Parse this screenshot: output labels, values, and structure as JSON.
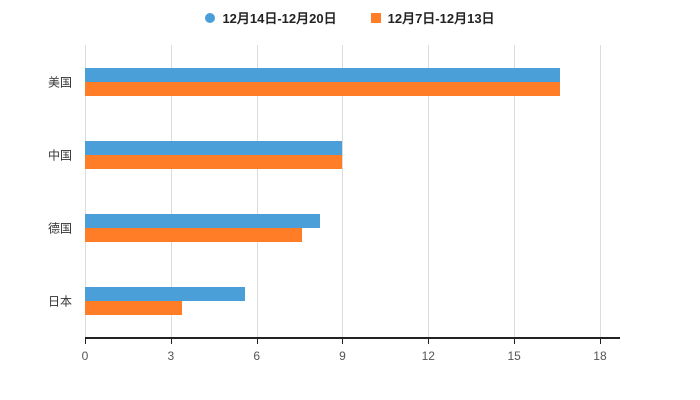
{
  "legend": [
    {
      "label": "12月14日-12月20日",
      "color": "#4A9FD8",
      "marker": "circle"
    },
    {
      "label": "12月7日-12月13日",
      "color": "#FF7D26",
      "marker": "square"
    }
  ],
  "chart_data": {
    "type": "bar",
    "orientation": "horizontal",
    "title": "",
    "xlabel": "",
    "ylabel": "",
    "categories": [
      "美国",
      "中国",
      "德国",
      "日本"
    ],
    "series": [
      {
        "name": "12月14日-12月20日",
        "color": "#4A9FD8",
        "values": [
          16.6,
          9.0,
          8.2,
          5.6
        ]
      },
      {
        "name": "12月7日-12月13日",
        "color": "#FF7D26",
        "values": [
          16.6,
          9.0,
          7.6,
          3.4
        ]
      }
    ],
    "xticks": [
      0,
      3,
      6,
      9,
      12,
      15,
      18
    ],
    "xlim": [
      0,
      18.7
    ],
    "grid": true,
    "legend_position": "top",
    "grid_color": "#dcdcdc",
    "axis_color": "#222222",
    "tick_label_color": "#555555",
    "category_label_color": "#333333"
  }
}
